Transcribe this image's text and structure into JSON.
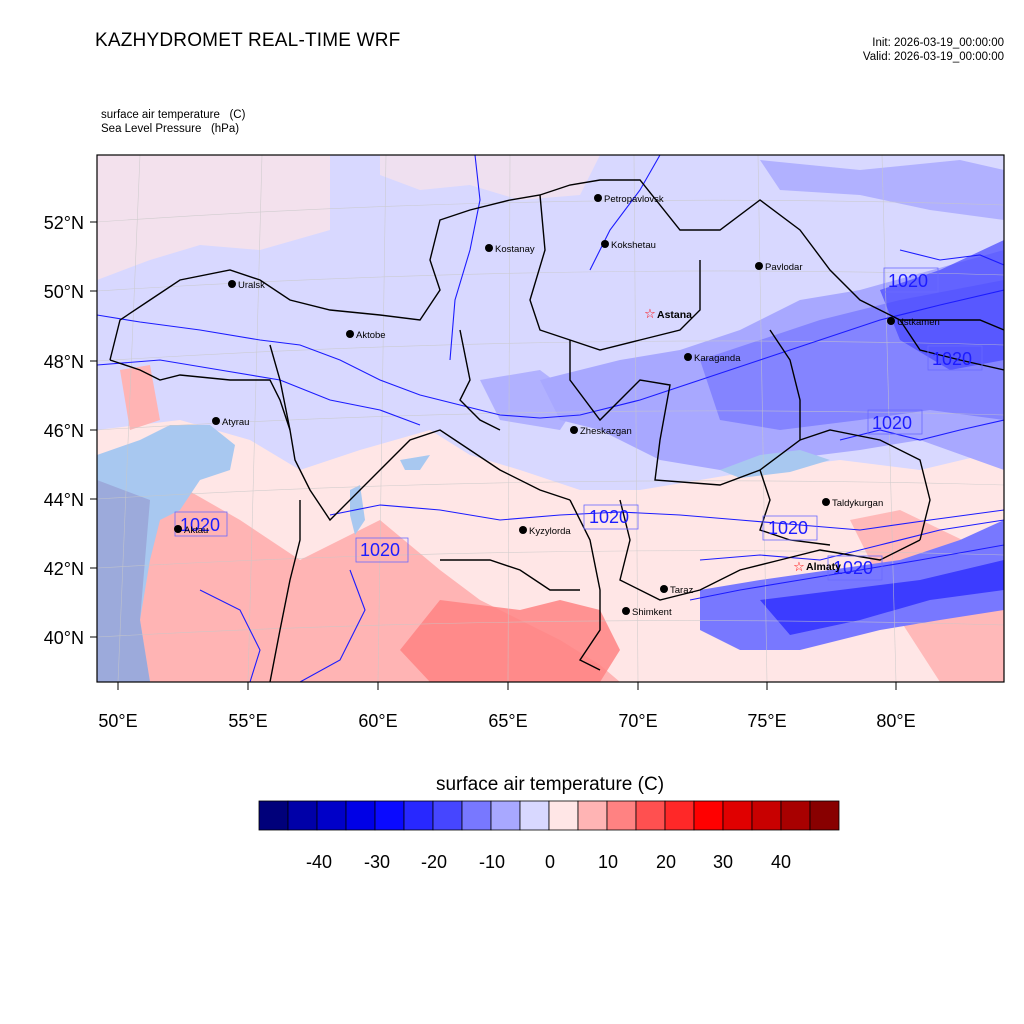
{
  "header": {
    "title": "KAZHYDROMET REAL-TIME WRF",
    "init": "Init: 2026-03-19_00:00:00",
    "valid": "Valid: 2026-03-19_00:00:00"
  },
  "fields": {
    "field1": "surface air temperature   (C)",
    "field2": "Sea Level Pressure   (hPa)"
  },
  "axes": {
    "lat_labels": [
      "52°N",
      "50°N",
      "48°N",
      "46°N",
      "44°N",
      "42°N",
      "40°N"
    ],
    "lon_labels": [
      "50°E",
      "55°E",
      "60°E",
      "65°E",
      "70°E",
      "75°E",
      "80°E"
    ]
  },
  "cities": [
    {
      "name": "Petropavlovsk",
      "capital": false
    },
    {
      "name": "Kostanay",
      "capital": false
    },
    {
      "name": "Kokshetau",
      "capital": false
    },
    {
      "name": "Pavlodar",
      "capital": false
    },
    {
      "name": "Uralsk",
      "capital": false
    },
    {
      "name": "Aktobe",
      "capital": false
    },
    {
      "name": "Astana",
      "capital": true
    },
    {
      "name": "Ustkamen",
      "capital": false
    },
    {
      "name": "Karaganda",
      "capital": false
    },
    {
      "name": "Atyrau",
      "capital": false
    },
    {
      "name": "Zheskazgan",
      "capital": false
    },
    {
      "name": "Taldykurgan",
      "capital": false
    },
    {
      "name": "Kyzylorda",
      "capital": false
    },
    {
      "name": "Aktau",
      "capital": false
    },
    {
      "name": "Almaty",
      "capital": true
    },
    {
      "name": "Taraz",
      "capital": false
    },
    {
      "name": "Shimkent",
      "capital": false
    }
  ],
  "isobar_label": "1020",
  "colorbar": {
    "title": "surface air temperature  (C)",
    "tick_labels": [
      "-40",
      "-30",
      "-20",
      "-10",
      "0",
      "10",
      "20",
      "30",
      "40"
    ],
    "colors": [
      "#00007a",
      "#0000a8",
      "#0000c8",
      "#0000e6",
      "#0a0aff",
      "#2828ff",
      "#4646ff",
      "#7878ff",
      "#a8a8ff",
      "#d8d8ff",
      "#ffe6e6",
      "#ffb4b4",
      "#ff8282",
      "#ff5050",
      "#ff2828",
      "#ff0000",
      "#e00000",
      "#c80000",
      "#a80000",
      "#880000"
    ]
  },
  "colors": {
    "land_cold": "#d8d8ff",
    "land_cool": "#a8a8ff",
    "land_cold_strong": "#7878ff",
    "land_warm": "#ffe6e6",
    "land_warmer": "#ffb4b4",
    "water": "#a8c8f0",
    "isobar": "#1c1cff",
    "border": "#000000"
  }
}
